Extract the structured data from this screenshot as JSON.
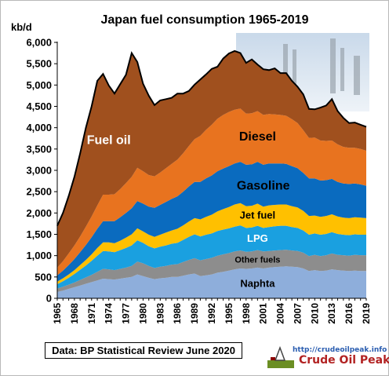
{
  "chart_data": {
    "type": "area",
    "title": "Japan fuel consumption 1965-2019",
    "ylabel": "kb/d",
    "xlabel": "",
    "ylim": [
      0,
      6000
    ],
    "yticks": [
      "0",
      "500",
      "1,000",
      "1,500",
      "2,000",
      "2,500",
      "3,000",
      "3,500",
      "4,000",
      "4,500",
      "5,000",
      "5,500",
      "6,000"
    ],
    "xticks": [
      "1965",
      "1968",
      "1971",
      "1974",
      "1977",
      "1980",
      "1983",
      "1986",
      "1989",
      "1992",
      "1995",
      "1998",
      "2001",
      "2004",
      "2007",
      "2010",
      "2013",
      "2016",
      "2019"
    ],
    "stacked": true,
    "grid": false,
    "x": [
      1965,
      1966,
      1967,
      1968,
      1969,
      1970,
      1971,
      1972,
      1973,
      1974,
      1975,
      1976,
      1977,
      1978,
      1979,
      1980,
      1981,
      1982,
      1983,
      1984,
      1985,
      1986,
      1987,
      1988,
      1989,
      1990,
      1991,
      1992,
      1993,
      1994,
      1995,
      1996,
      1997,
      1998,
      1999,
      2000,
      2001,
      2002,
      2003,
      2004,
      2005,
      2006,
      2007,
      2008,
      2009,
      2010,
      2011,
      2012,
      2013,
      2014,
      2015,
      2016,
      2017,
      2018,
      2019
    ],
    "series": [
      {
        "name": "Naphta",
        "color": "#8eaedb",
        "values": [
          150,
          180,
          220,
          260,
          300,
          340,
          380,
          420,
          460,
          450,
          440,
          460,
          480,
          500,
          560,
          520,
          480,
          450,
          470,
          480,
          500,
          500,
          530,
          560,
          580,
          520,
          540,
          560,
          600,
          620,
          650,
          680,
          700,
          690,
          700,
          720,
          700,
          720,
          730,
          740,
          750,
          740,
          730,
          700,
          640,
          660,
          640,
          650,
          680,
          660,
          650,
          640,
          650,
          640,
          640
        ]
      },
      {
        "name": "Other fuels",
        "color": "#8d8d8d",
        "values": [
          80,
          90,
          100,
          110,
          130,
          150,
          170,
          200,
          230,
          230,
          220,
          230,
          240,
          260,
          300,
          300,
          280,
          260,
          270,
          280,
          290,
          300,
          320,
          340,
          360,
          370,
          380,
          390,
          400,
          410,
          410,
          420,
          420,
          400,
          400,
          410,
          400,
          390,
          390,
          390,
          390,
          380,
          380,
          370,
          350,
          360,
          350,
          360,
          370,
          360,
          360,
          360,
          370,
          370,
          370
        ]
      },
      {
        "name": "LPG",
        "color": "#1aa0e0",
        "values": [
          100,
          130,
          160,
          200,
          240,
          280,
          330,
          380,
          420,
          420,
          420,
          440,
          460,
          480,
          500,
          480,
          460,
          460,
          470,
          480,
          490,
          500,
          520,
          540,
          560,
          560,
          570,
          570,
          580,
          580,
          580,
          580,
          590,
          560,
          560,
          570,
          550,
          560,
          570,
          570,
          560,
          550,
          540,
          520,
          500,
          500,
          500,
          500,
          500,
          490,
          480,
          480,
          480,
          480,
          480
        ]
      },
      {
        "name": "Jet fuel",
        "color": "#ffc000",
        "values": [
          60,
          70,
          80,
          90,
          110,
          130,
          150,
          180,
          200,
          210,
          210,
          220,
          240,
          260,
          280,
          270,
          270,
          270,
          280,
          300,
          310,
          330,
          340,
          360,
          380,
          400,
          420,
          440,
          460,
          480,
          500,
          520,
          520,
          510,
          510,
          520,
          500,
          510,
          500,
          500,
          500,
          490,
          480,
          460,
          440,
          420,
          420,
          420,
          420,
          410,
          400,
          400,
          400,
          400,
          390
        ]
      },
      {
        "name": "Gasoline",
        "color": "#0a6bbf",
        "values": [
          150,
          180,
          220,
          260,
          300,
          350,
          400,
          450,
          500,
          500,
          520,
          550,
          580,
          610,
          640,
          650,
          660,
          680,
          700,
          720,
          740,
          760,
          790,
          820,
          850,
          880,
          900,
          920,
          940,
          950,
          960,
          960,
          970,
          970,
          970,
          980,
          980,
          980,
          970,
          960,
          950,
          940,
          920,
          890,
          880,
          870,
          850,
          840,
          830,
          810,
          800,
          800,
          790,
          780,
          760
        ]
      },
      {
        "name": "Diesel",
        "color": "#e8731f",
        "values": [
          180,
          220,
          270,
          320,
          370,
          430,
          490,
          550,
          620,
          620,
          630,
          660,
          700,
          740,
          780,
          760,
          740,
          740,
          760,
          790,
          820,
          860,
          900,
          950,
          1000,
          1080,
          1140,
          1190,
          1230,
          1260,
          1270,
          1260,
          1250,
          1200,
          1200,
          1190,
          1170,
          1160,
          1150,
          1140,
          1130,
          1100,
          1060,
          1000,
          950,
          960,
          940,
          920,
          900,
          880,
          860,
          850,
          840,
          830,
          820
        ]
      },
      {
        "name": "Fuel oil",
        "color": "#a0501e",
        "values": [
          980,
          1130,
          1350,
          1610,
          1950,
          2320,
          2580,
          2920,
          2830,
          2560,
          2360,
          2460,
          2540,
          2900,
          2480,
          2050,
          1860,
          1670,
          1690,
          1620,
          1550,
          1550,
          1400,
          1290,
          1280,
          1320,
          1300,
          1310,
          1220,
          1320,
          1370,
          1380,
          1300,
          1190,
          1260,
          1090,
          1070,
          1030,
          1080,
          980,
          1000,
          900,
          850,
          840,
          680,
          660,
          770,
          830,
          970,
          780,
          680,
          580,
          590,
          570,
          560
        ]
      }
    ]
  }
}
